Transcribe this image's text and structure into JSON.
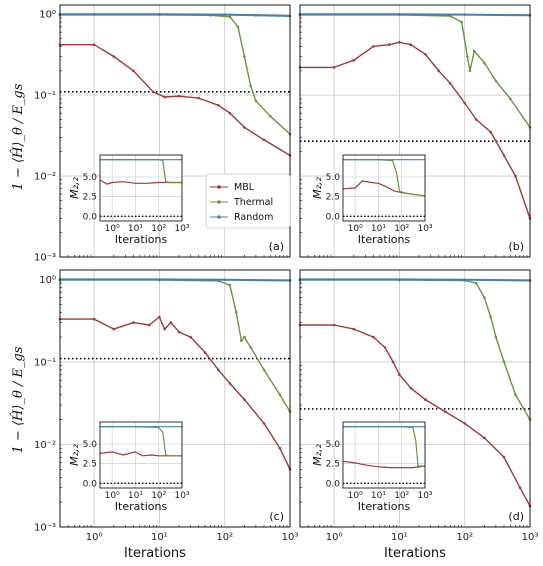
{
  "colors": {
    "MBL": "#9b3b3b",
    "Thermal": "#6b9440",
    "Random": "#4a7fa8",
    "grid": "#c8c8c8",
    "hline": "#000000"
  },
  "chart_data": {
    "type": "line",
    "layout": "2x2 panels with inset",
    "xlabel": "Iterations",
    "ylabel": "1 − ⟨Ĥ⟩_θ / E_gs",
    "xscale": "log",
    "yscale": "log",
    "xlim": [
      0.3,
      1000
    ],
    "ylim": [
      0.001,
      1.3
    ],
    "x_ticks": [
      "10⁰",
      "10¹",
      "10²",
      "10³"
    ],
    "y_ticks": [
      "10⁻³",
      "10⁻²",
      "10⁻¹",
      "10⁰"
    ],
    "legend": {
      "placement": "panel (a), right",
      "entries": [
        "MBL",
        "Thermal",
        "Random"
      ]
    },
    "inset": {
      "xlabel": "Iterations",
      "ylabel": "M₂,₂",
      "y_ticks": [
        "0.0",
        "2.5",
        "5.0"
      ],
      "x_ticks": [
        "10⁰",
        "10¹",
        "10²",
        "10³"
      ]
    },
    "panels": [
      {
        "label": "(a)",
        "hline": 0.11,
        "series": [
          {
            "name": "MBL",
            "x": [
              0.3,
              1,
              2,
              4,
              8,
              12,
              20,
              40,
              80,
              120,
              200,
              400,
              1000
            ],
            "y": [
              0.42,
              0.42,
              0.3,
              0.2,
              0.11,
              0.095,
              0.097,
              0.092,
              0.075,
              0.06,
              0.04,
              0.028,
              0.018
            ]
          },
          {
            "name": "Thermal",
            "x": [
              0.3,
              1,
              10,
              60,
              120,
              160,
              200,
              250,
              300,
              500,
              1000
            ],
            "y": [
              0.98,
              0.98,
              0.98,
              0.97,
              0.93,
              0.7,
              0.3,
              0.13,
              0.085,
              0.055,
              0.033
            ]
          },
          {
            "name": "Random",
            "x": [
              0.3,
              1,
              10,
              100,
              300,
              1000
            ],
            "y": [
              1.0,
              1.0,
              1.0,
              0.99,
              0.97,
              0.95
            ]
          }
        ],
        "inset_series": [
          {
            "name": "MBL",
            "x": [
              0.3,
              0.6,
              1,
              3,
              10,
              30,
              100,
              300,
              1000
            ],
            "y": [
              4.6,
              4.1,
              4.3,
              4.4,
              4.2,
              4.2,
              4.3,
              4.3,
              4.3
            ]
          },
          {
            "name": "Thermal",
            "x": [
              0.3,
              10,
              100,
              150,
              200,
              300,
              1000
            ],
            "y": [
              7.2,
              7.2,
              7.2,
              7.1,
              4.4,
              4.3,
              4.3
            ]
          },
          {
            "name": "Random",
            "x": [
              0.3,
              1000
            ],
            "y": [
              7.2,
              7.2
            ]
          }
        ]
      },
      {
        "label": "(b)",
        "hline": 0.027,
        "series": [
          {
            "name": "MBL",
            "x": [
              0.3,
              1,
              2,
              4,
              7,
              10,
              15,
              25,
              40,
              60,
              100,
              150,
              250,
              400,
              600,
              1000
            ],
            "y": [
              0.22,
              0.22,
              0.27,
              0.4,
              0.42,
              0.45,
              0.42,
              0.32,
              0.2,
              0.14,
              0.08,
              0.05,
              0.035,
              0.018,
              0.01,
              0.003
            ]
          },
          {
            "name": "Thermal",
            "x": [
              0.3,
              10,
              60,
              90,
              110,
              120,
              140,
              200,
              300,
              500,
              1000
            ],
            "y": [
              0.98,
              0.98,
              0.95,
              0.8,
              0.3,
              0.2,
              0.35,
              0.25,
              0.15,
              0.09,
              0.04
            ]
          },
          {
            "name": "Random",
            "x": [
              0.3,
              10,
              100,
              1000
            ],
            "y": [
              1.0,
              1.0,
              0.99,
              0.97
            ]
          }
        ],
        "inset_series": [
          {
            "name": "MBL",
            "x": [
              0.3,
              1,
              2,
              5,
              10,
              20,
              50,
              100,
              300,
              1000
            ],
            "y": [
              3.5,
              3.6,
              4.5,
              4.3,
              4.2,
              3.8,
              3.2,
              3.0,
              2.8,
              2.6
            ]
          },
          {
            "name": "Thermal",
            "x": [
              0.3,
              10,
              40,
              60,
              80,
              120,
              300,
              1000
            ],
            "y": [
              7.2,
              7.2,
              7.1,
              5.5,
              3.2,
              3.0,
              2.8,
              2.6
            ]
          },
          {
            "name": "Random",
            "x": [
              0.3,
              1000
            ],
            "y": [
              7.2,
              7.2
            ]
          }
        ]
      },
      {
        "label": "(c)",
        "hline": 0.11,
        "series": [
          {
            "name": "MBL",
            "x": [
              0.3,
              1,
              2,
              4,
              7,
              10,
              12,
              15,
              20,
              30,
              50,
              80,
              120,
              200,
              400,
              700,
              1000
            ],
            "y": [
              0.33,
              0.33,
              0.25,
              0.3,
              0.28,
              0.35,
              0.25,
              0.3,
              0.23,
              0.2,
              0.13,
              0.08,
              0.055,
              0.035,
              0.018,
              0.009,
              0.005
            ]
          },
          {
            "name": "Thermal",
            "x": [
              0.3,
              10,
              80,
              120,
              150,
              180,
              200,
              250,
              400,
              700,
              1000
            ],
            "y": [
              0.98,
              0.98,
              0.96,
              0.85,
              0.4,
              0.18,
              0.2,
              0.15,
              0.08,
              0.04,
              0.025
            ]
          },
          {
            "name": "Random",
            "x": [
              0.3,
              10,
              100,
              1000
            ],
            "y": [
              1.0,
              1.0,
              0.99,
              0.97
            ]
          }
        ],
        "inset_series": [
          {
            "name": "MBL",
            "x": [
              0.3,
              1,
              3,
              10,
              20,
              50,
              100,
              300,
              1000
            ],
            "y": [
              3.8,
              4.0,
              3.6,
              4.0,
              3.5,
              3.6,
              3.5,
              3.5,
              3.5
            ]
          },
          {
            "name": "Thermal",
            "x": [
              0.3,
              10,
              100,
              150,
              200,
              300,
              1000
            ],
            "y": [
              7.2,
              7.2,
              7.1,
              6.5,
              3.6,
              3.5,
              3.5
            ]
          },
          {
            "name": "Random",
            "x": [
              0.3,
              1000
            ],
            "y": [
              7.2,
              7.2
            ]
          }
        ]
      },
      {
        "label": "(d)",
        "hline": 0.027,
        "series": [
          {
            "name": "MBL",
            "x": [
              0.3,
              1,
              2,
              4,
              6,
              8,
              10,
              15,
              25,
              50,
              100,
              200,
              400,
              700,
              1000
            ],
            "y": [
              0.28,
              0.28,
              0.25,
              0.2,
              0.15,
              0.1,
              0.07,
              0.048,
              0.035,
              0.025,
              0.018,
              0.012,
              0.007,
              0.003,
              0.0018
            ]
          },
          {
            "name": "Thermal",
            "x": [
              0.3,
              10,
              100,
              150,
              200,
              250,
              300,
              400,
              600,
              1000
            ],
            "y": [
              0.98,
              0.98,
              0.97,
              0.9,
              0.6,
              0.35,
              0.2,
              0.1,
              0.04,
              0.02
            ]
          },
          {
            "name": "Random",
            "x": [
              0.3,
              10,
              100,
              1000
            ],
            "y": [
              1.0,
              1.0,
              0.99,
              0.97
            ]
          }
        ],
        "inset_series": [
          {
            "name": "MBL",
            "x": [
              0.3,
              1,
              3,
              10,
              30,
              100,
              300,
              1000
            ],
            "y": [
              2.8,
              2.6,
              2.3,
              2.1,
              2.0,
              2.0,
              2.0,
              2.2
            ]
          },
          {
            "name": "Thermal",
            "x": [
              0.3,
              10,
              100,
              300,
              400,
              500,
              1000
            ],
            "y": [
              7.2,
              7.2,
              7.2,
              7.1,
              5.5,
              2.2,
              2.2
            ]
          },
          {
            "name": "Random",
            "x": [
              0.3,
              1000
            ],
            "y": [
              7.2,
              7.2
            ]
          }
        ]
      }
    ]
  }
}
